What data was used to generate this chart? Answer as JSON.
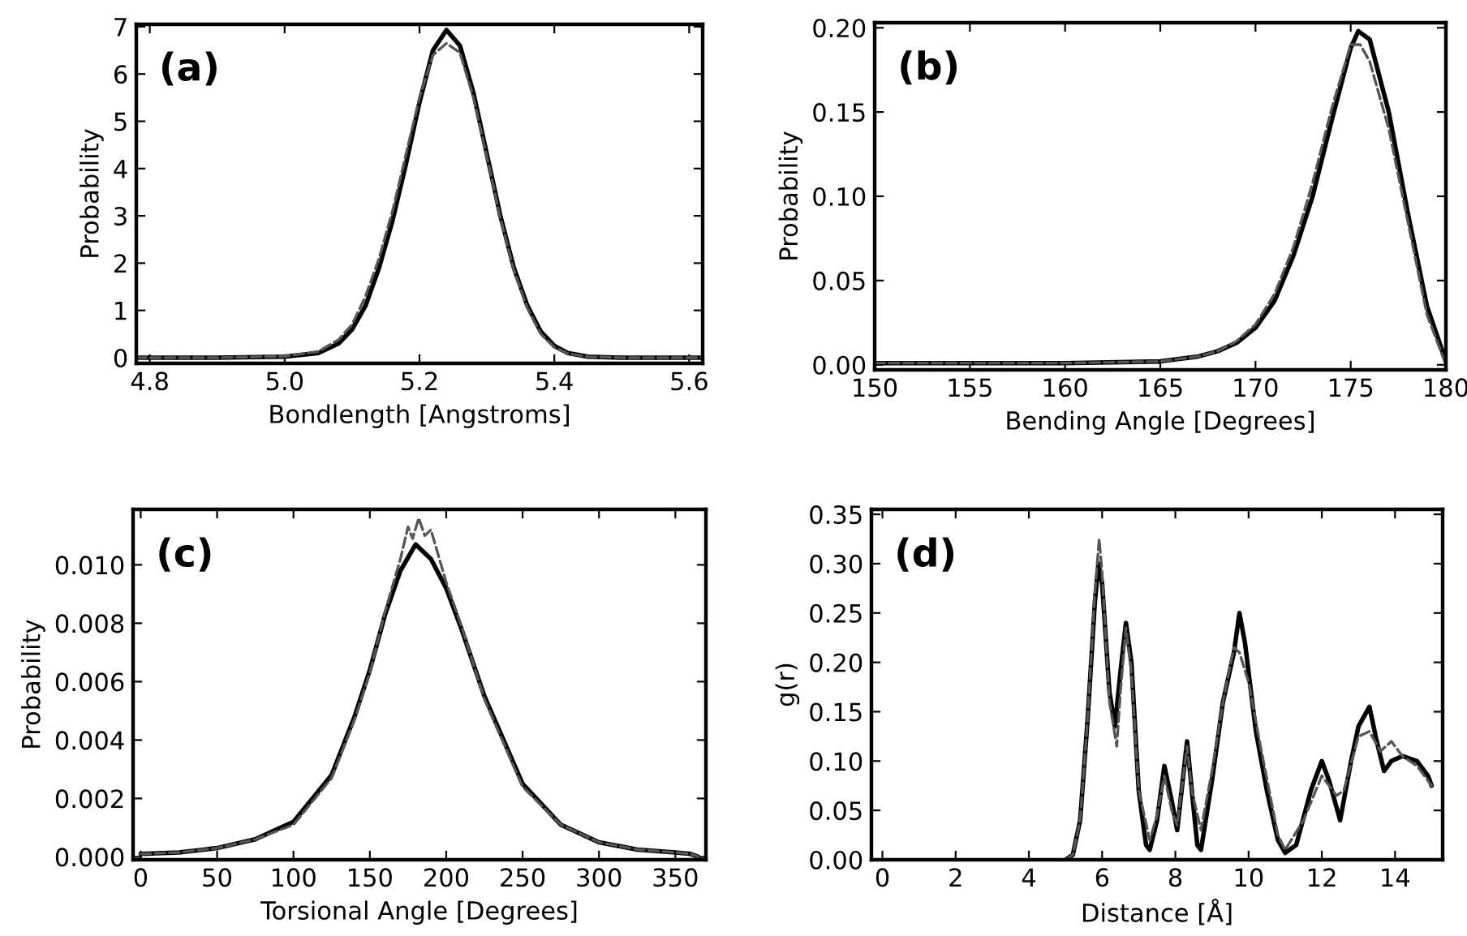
{
  "chart_data": [
    {
      "type": "line",
      "xlabel": "Bondlength [Angstroms]",
      "ylabel": "Probability",
      "annotations": [
        "(a)"
      ],
      "xlim": [
        4.78,
        5.62
      ],
      "xticks": [
        {
          "value": 4.8,
          "label": "4.8"
        },
        {
          "value": 5.0,
          "label": "5.0"
        },
        {
          "value": 5.2,
          "label": "5.2"
        },
        {
          "value": 5.4,
          "label": "5.4"
        },
        {
          "value": 5.6,
          "label": "5.6"
        }
      ],
      "ylim": [
        -0.12,
        7.05
      ],
      "yticks": [
        0,
        1,
        2,
        3,
        4,
        5,
        6,
        7
      ],
      "grid": false,
      "series": [
        {
          "color": "#000000",
          "line_style": "solid",
          "x": [
            4.78,
            4.9,
            5.0,
            5.05,
            5.08,
            5.1,
            5.12,
            5.14,
            5.16,
            5.18,
            5.2,
            5.22,
            5.24,
            5.26,
            5.28,
            5.3,
            5.32,
            5.34,
            5.36,
            5.38,
            5.4,
            5.42,
            5.45,
            5.5,
            5.62
          ],
          "values": [
            0,
            0,
            0.02,
            0.1,
            0.3,
            0.6,
            1.1,
            1.9,
            2.9,
            4.1,
            5.4,
            6.5,
            6.93,
            6.6,
            5.6,
            4.3,
            3.0,
            1.9,
            1.1,
            0.55,
            0.25,
            0.1,
            0.02,
            0,
            0
          ]
        },
        {
          "color": "#555555",
          "line_style": "dashed",
          "x": [
            4.78,
            4.9,
            5.0,
            5.05,
            5.08,
            5.1,
            5.12,
            5.14,
            5.16,
            5.18,
            5.2,
            5.22,
            5.24,
            5.26,
            5.28,
            5.3,
            5.32,
            5.34,
            5.36,
            5.38,
            5.4,
            5.42,
            5.45,
            5.5,
            5.62
          ],
          "values": [
            0,
            0,
            0.03,
            0.13,
            0.38,
            0.7,
            1.3,
            2.1,
            3.1,
            4.3,
            5.5,
            6.4,
            6.65,
            6.45,
            5.5,
            4.25,
            2.95,
            1.85,
            1.05,
            0.5,
            0.22,
            0.09,
            0.02,
            0,
            0
          ]
        }
      ]
    },
    {
      "type": "line",
      "xlabel": "Bending Angle [Degrees]",
      "ylabel": "Probability",
      "annotations": [
        "(b)"
      ],
      "xlim": [
        150,
        180
      ],
      "xticks": [
        150,
        155,
        160,
        165,
        170,
        175,
        180
      ],
      "ylim": [
        -0.003,
        0.203
      ],
      "yticks": [
        {
          "value": 0,
          "label": "0.00"
        },
        {
          "value": 0.05,
          "label": "0.05"
        },
        {
          "value": 0.1,
          "label": "0.10"
        },
        {
          "value": 0.15,
          "label": "0.15"
        },
        {
          "value": 0.2,
          "label": "0.20"
        }
      ],
      "grid": false,
      "series": [
        {
          "color": "#000000",
          "line_style": "solid",
          "x": [
            150,
            160,
            165,
            167,
            168,
            169,
            170,
            171,
            172,
            173,
            174,
            175,
            175.4,
            176,
            177,
            178,
            179,
            180
          ],
          "values": [
            0.001,
            0.001,
            0.002,
            0.005,
            0.008,
            0.013,
            0.022,
            0.038,
            0.065,
            0.1,
            0.145,
            0.188,
            0.198,
            0.193,
            0.15,
            0.09,
            0.035,
            0.002
          ]
        },
        {
          "color": "#555555",
          "line_style": "dashed",
          "x": [
            150,
            160,
            165,
            167,
            168,
            169,
            170,
            171,
            172,
            173,
            174,
            175,
            175.5,
            176,
            177,
            178,
            179,
            180
          ],
          "values": [
            0.001,
            0.001,
            0.002,
            0.005,
            0.008,
            0.014,
            0.024,
            0.042,
            0.07,
            0.108,
            0.152,
            0.19,
            0.19,
            0.18,
            0.14,
            0.085,
            0.03,
            0.0
          ]
        }
      ]
    },
    {
      "type": "line",
      "xlabel": "Torsional Angle [Degrees]",
      "ylabel": "Probability",
      "annotations": [
        "(c)"
      ],
      "xlim": [
        -5,
        370
      ],
      "xticks": [
        0,
        50,
        100,
        150,
        200,
        250,
        300,
        350
      ],
      "ylim": [
        -0.0001,
        0.0119
      ],
      "yticks": [
        {
          "value": 0,
          "label": "0.000"
        },
        {
          "value": 0.002,
          "label": "0.002"
        },
        {
          "value": 0.004,
          "label": "0.004"
        },
        {
          "value": 0.006,
          "label": "0.006"
        },
        {
          "value": 0.008,
          "label": "0.008"
        },
        {
          "value": 0.01,
          "label": "0.010"
        }
      ],
      "grid": false,
      "series": [
        {
          "color": "#000000",
          "line_style": "solid",
          "x": [
            0,
            25,
            50,
            75,
            100,
            125,
            140,
            150,
            160,
            170,
            180,
            190,
            200,
            210,
            225,
            250,
            275,
            300,
            325,
            350,
            360,
            365
          ],
          "values": [
            0.0001,
            0.00015,
            0.0003,
            0.0006,
            0.0012,
            0.0028,
            0.0048,
            0.0064,
            0.0083,
            0.0098,
            0.0107,
            0.0102,
            0.0092,
            0.0078,
            0.0055,
            0.0025,
            0.0011,
            0.0005,
            0.00025,
            0.00015,
            0.0001,
            0.0
          ]
        },
        {
          "color": "#555555",
          "line_style": "dashed",
          "x": [
            0,
            25,
            50,
            75,
            100,
            125,
            140,
            150,
            160,
            170,
            175,
            178,
            182,
            186,
            190,
            195,
            200,
            210,
            225,
            250,
            275,
            300,
            325,
            350,
            360,
            365
          ],
          "values": [
            0.0001,
            0.00015,
            0.0003,
            0.0006,
            0.0011,
            0.0027,
            0.0047,
            0.0063,
            0.0084,
            0.0102,
            0.0113,
            0.0109,
            0.0116,
            0.011,
            0.0112,
            0.0103,
            0.0094,
            0.0079,
            0.0054,
            0.0024,
            0.0011,
            0.0005,
            0.00025,
            0.00015,
            0.0001,
            0.0
          ]
        }
      ]
    },
    {
      "type": "line",
      "xlabel": "Distance [Å]",
      "ylabel": "g(r)",
      "annotations": [
        "(d)"
      ],
      "xlim": [
        -0.3,
        15.3
      ],
      "xticks": [
        0,
        2,
        4,
        6,
        8,
        10,
        12,
        14
      ],
      "ylim": [
        0,
        0.355
      ],
      "yticks": [
        {
          "value": 0,
          "label": "0.00"
        },
        {
          "value": 0.05,
          "label": "0.05"
        },
        {
          "value": 0.1,
          "label": "0.10"
        },
        {
          "value": 0.15,
          "label": "0.15"
        },
        {
          "value": 0.2,
          "label": "0.20"
        },
        {
          "value": 0.25,
          "label": "0.25"
        },
        {
          "value": 0.3,
          "label": "0.30"
        },
        {
          "value": 0.35,
          "label": "0.35"
        }
      ],
      "grid": false,
      "series": [
        {
          "color": "#000000",
          "line_style": "solid",
          "x": [
            5.0,
            5.2,
            5.4,
            5.6,
            5.8,
            5.9,
            6.0,
            6.2,
            6.35,
            6.5,
            6.65,
            6.8,
            7.0,
            7.2,
            7.3,
            7.5,
            7.7,
            7.9,
            8.05,
            8.2,
            8.32,
            8.45,
            8.6,
            8.7,
            9.0,
            9.3,
            9.6,
            9.75,
            9.9,
            10.2,
            10.5,
            10.8,
            11.0,
            11.3,
            11.7,
            12.0,
            12.2,
            12.5,
            12.8,
            13.0,
            13.3,
            13.5,
            13.7,
            13.9,
            14.2,
            14.6,
            14.9,
            15.0
          ],
          "values": [
            0,
            0.005,
            0.04,
            0.14,
            0.26,
            0.3,
            0.28,
            0.17,
            0.135,
            0.19,
            0.24,
            0.2,
            0.07,
            0.015,
            0.01,
            0.04,
            0.095,
            0.06,
            0.03,
            0.08,
            0.12,
            0.07,
            0.015,
            0.01,
            0.08,
            0.16,
            0.21,
            0.25,
            0.22,
            0.13,
            0.07,
            0.02,
            0.007,
            0.015,
            0.07,
            0.1,
            0.08,
            0.04,
            0.1,
            0.135,
            0.155,
            0.12,
            0.09,
            0.1,
            0.105,
            0.1,
            0.085,
            0.075
          ]
        },
        {
          "color": "#555555",
          "line_style": "dashed",
          "x": [
            5.0,
            5.2,
            5.4,
            5.6,
            5.8,
            5.92,
            6.0,
            6.2,
            6.4,
            6.5,
            6.65,
            6.8,
            7.0,
            7.3,
            7.5,
            7.7,
            7.9,
            8.05,
            8.2,
            8.32,
            8.45,
            8.7,
            9.0,
            9.3,
            9.6,
            9.75,
            10.0,
            10.3,
            10.8,
            11.0,
            11.5,
            12.0,
            12.4,
            12.6,
            13.0,
            13.3,
            13.6,
            13.9,
            14.2,
            14.6,
            15.0
          ],
          "values": [
            0,
            0.005,
            0.04,
            0.14,
            0.27,
            0.325,
            0.29,
            0.16,
            0.115,
            0.17,
            0.235,
            0.19,
            0.07,
            0.02,
            0.045,
            0.085,
            0.05,
            0.035,
            0.08,
            0.115,
            0.07,
            0.03,
            0.09,
            0.16,
            0.215,
            0.21,
            0.18,
            0.12,
            0.025,
            0.01,
            0.04,
            0.085,
            0.065,
            0.07,
            0.125,
            0.13,
            0.11,
            0.12,
            0.105,
            0.095,
            0.075
          ]
        }
      ]
    }
  ]
}
